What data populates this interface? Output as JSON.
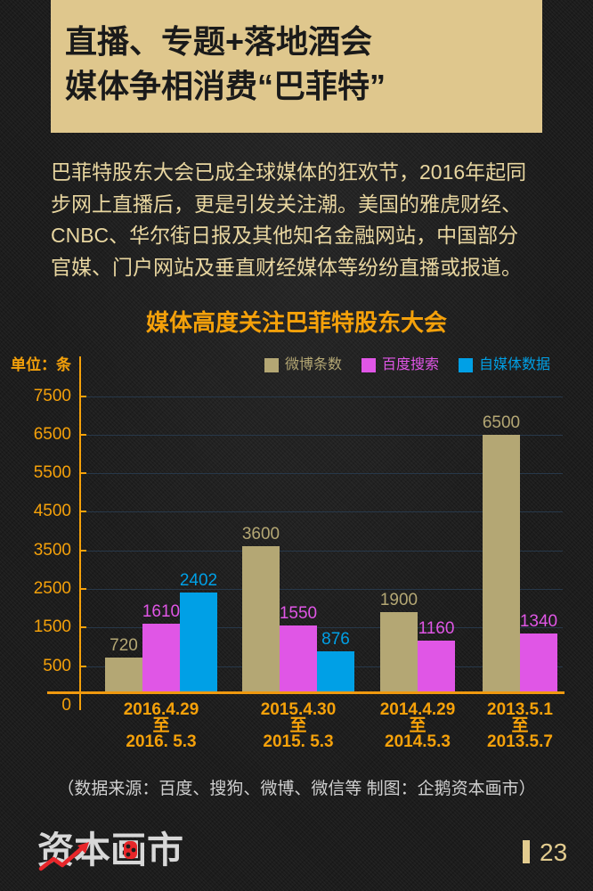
{
  "header": {
    "title_lines": [
      "直播、专题+落地酒会",
      "媒体争相消费“巴菲特”"
    ]
  },
  "intro": {
    "lines": [
      "巴菲特股东大会已成全球媒体的狂欢节，2016年起同",
      "步网上直播后，更是引发关注潮。美国的雅虎财经、",
      "CNBC、华尔街日报及其他知名金融网站，中国部分",
      "官媒、门户网站及垂直财经媒体等纷纷直播或报道。"
    ]
  },
  "chart_data": {
    "type": "bar",
    "title": "媒体高度关注巴菲特股东大会",
    "xlabel": "",
    "ylabel": "单位：条",
    "categories": [
      "2016.4.29 至 2016. 5.3",
      "2015.4.30 至 2015. 5.3",
      "2014.4.29 至 2014.5.3",
      "2013.5.1 至 2013.5.7"
    ],
    "category_lines": [
      [
        "2016.4.29",
        "至",
        "2016. 5.3"
      ],
      [
        "2015.4.30",
        "至",
        "2015. 5.3"
      ],
      [
        "2014.4.29",
        "至",
        "2014.5.3"
      ],
      [
        "2013.5.1",
        "至",
        "2013.5.7"
      ]
    ],
    "series": [
      {
        "name": "微博条数",
        "color": "#b4a774",
        "values": [
          720,
          3600,
          1900,
          6500
        ]
      },
      {
        "name": "百度搜索",
        "color": "#e056e6",
        "values": [
          1610,
          1550,
          1160,
          1340
        ]
      },
      {
        "name": "自媒体数据",
        "color": "#00a0e6",
        "values": [
          2402,
          876,
          null,
          null
        ]
      }
    ],
    "yticks": [
      7500,
      6500,
      5500,
      4500,
      3500,
      2500,
      1500,
      500,
      0
    ],
    "ylim": [
      0,
      7500
    ],
    "grid": true,
    "legend_position": "top-right",
    "data_labels": true
  },
  "theme": {
    "accent": "#f5a10a",
    "header_bg": "#dfc78d",
    "text_gold": "#e8d6a0",
    "gridline": "#27384a",
    "background": "#1c1c1c"
  },
  "footer": {
    "source": "（数据来源：百度、搜狗、微博、微信等 制图：企鹅资本画市）",
    "logo_text": "资本画市",
    "page_number": "23"
  }
}
